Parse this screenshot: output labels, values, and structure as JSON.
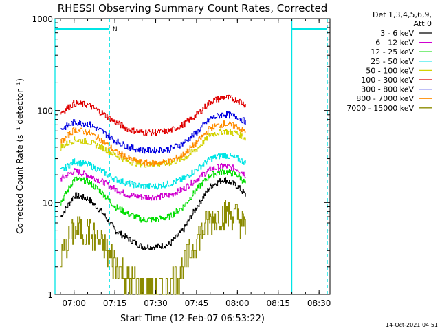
{
  "chart_data": {
    "type": "line",
    "title": "RHESSI Observing Summary Count Rates, Corrected",
    "xlabel": "Start Time (12-Feb-07 06:53:22)",
    "ylabel": "Corrected Count Rate (s⁻¹ detector⁻¹)",
    "y_scale": "log",
    "ylim": [
      1,
      1000
    ],
    "xlim": [
      "06:53",
      "08:34"
    ],
    "x_ticks": [
      "07:00",
      "07:15",
      "07:30",
      "07:45",
      "08:00",
      "08:15",
      "08:30"
    ],
    "y_ticks": [
      "1",
      "10",
      "100",
      "1000"
    ],
    "legend_header": [
      "Det 1,3,4,5,6,9,",
      "Att 0"
    ],
    "legend_position": "top-right",
    "timestamp": "14-Oct-2021 04:51",
    "markers": {
      "flag_label": "N",
      "solid_lines": [
        "06:53",
        "08:20"
      ],
      "dashed_lines": [
        "07:13",
        "08:33"
      ],
      "flag_segments": [
        [
          "06:53",
          "07:13"
        ],
        [
          "08:20",
          "08:33"
        ]
      ]
    },
    "x": [
      "06:55",
      "07:00",
      "07:05",
      "07:10",
      "07:15",
      "07:20",
      "07:25",
      "07:30",
      "07:35",
      "07:40",
      "07:45",
      "07:50",
      "07:55",
      "08:00",
      "08:03"
    ],
    "series": [
      {
        "name": "3 - 6 keV",
        "color": "#000000",
        "values": [
          7,
          12,
          11,
          8,
          5,
          4,
          3.3,
          3.3,
          3.5,
          5,
          9,
          15,
          18,
          15,
          12
        ]
      },
      {
        "name": "6 - 12 keV",
        "color": "#d000d0",
        "values": [
          18,
          22,
          20,
          17,
          14,
          12,
          11.5,
          11.5,
          12,
          14,
          18,
          23,
          25,
          23,
          20
        ]
      },
      {
        "name": "12 - 25 keV",
        "color": "#00dd00",
        "values": [
          10,
          18,
          17,
          13,
          9,
          7.5,
          6.5,
          6.5,
          7,
          9,
          14,
          20,
          22,
          20,
          16
        ]
      },
      {
        "name": "25 - 50 keV",
        "color": "#00e5e5",
        "values": [
          22,
          28,
          26,
          22,
          18,
          16,
          15,
          15,
          16,
          18,
          23,
          30,
          33,
          30,
          27
        ]
      },
      {
        "name": "50 - 100 keV",
        "color": "#d2d200",
        "values": [
          40,
          48,
          46,
          40,
          33,
          28,
          26,
          26,
          27,
          30,
          38,
          55,
          60,
          56,
          50
        ]
      },
      {
        "name": "100 - 300 keV",
        "color": "#e00000",
        "values": [
          95,
          120,
          115,
          95,
          75,
          62,
          58,
          58,
          60,
          70,
          90,
          125,
          140,
          130,
          115
        ]
      },
      {
        "name": "300 - 800 keV",
        "color": "#0000e0",
        "values": [
          62,
          75,
          72,
          60,
          47,
          40,
          37,
          37,
          38,
          44,
          58,
          82,
          92,
          85,
          75
        ]
      },
      {
        "name": "800 - 7000 keV",
        "color": "#ff8c00",
        "values": [
          45,
          62,
          58,
          48,
          36,
          30,
          27,
          27,
          28,
          33,
          45,
          65,
          72,
          67,
          58
        ]
      },
      {
        "name": "7000 - 15000 keV",
        "color": "#8b8b00",
        "values": [
          2.5,
          5,
          4.8,
          3.5,
          2.2,
          1.4,
          1.1,
          1.1,
          1.2,
          2,
          4,
          6.5,
          7.5,
          7,
          5
        ]
      }
    ]
  }
}
